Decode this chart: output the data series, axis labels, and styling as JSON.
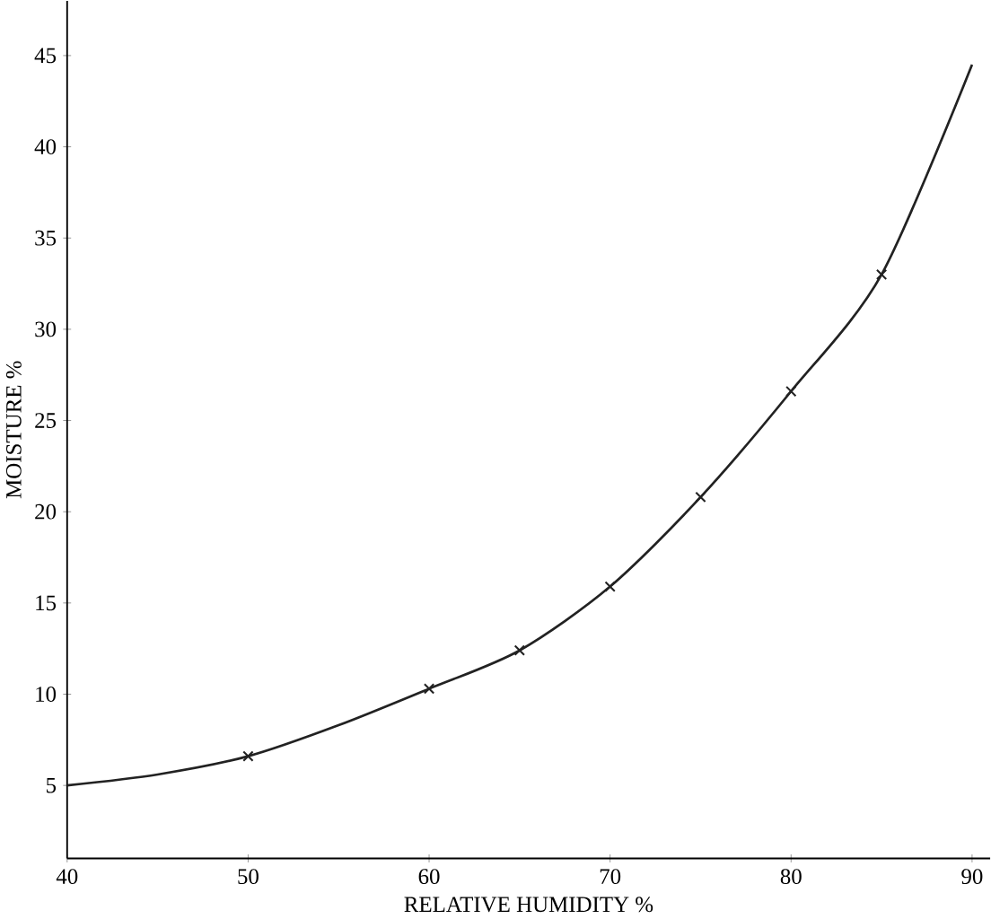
{
  "chart_data": {
    "type": "line",
    "xlabel": "RELATIVE HUMIDITY %",
    "ylabel": "MOISTURE %",
    "xlim": [
      40,
      91
    ],
    "ylim": [
      1,
      48
    ],
    "xticks": [
      40,
      50,
      60,
      70,
      80,
      90
    ],
    "yticks": [
      5,
      10,
      15,
      20,
      25,
      30,
      35,
      40,
      45
    ],
    "grid": false,
    "series": [
      {
        "color": "#222222",
        "marker": "none",
        "line_style": "solid",
        "x": [
          40,
          45,
          50,
          55,
          60,
          65,
          70,
          75,
          80,
          85,
          90
        ],
        "values": [
          5,
          5.6,
          6.6,
          8.3,
          10.3,
          12.4,
          15.9,
          20.8,
          26.6,
          33,
          44.5
        ]
      },
      {
        "type": "scatter",
        "color": "#222222",
        "marker": "cross",
        "x": [
          50,
          60,
          65,
          70,
          75,
          80,
          85
        ],
        "values": [
          6.6,
          10.3,
          12.4,
          15.9,
          20.8,
          26.6,
          33
        ]
      }
    ]
  }
}
